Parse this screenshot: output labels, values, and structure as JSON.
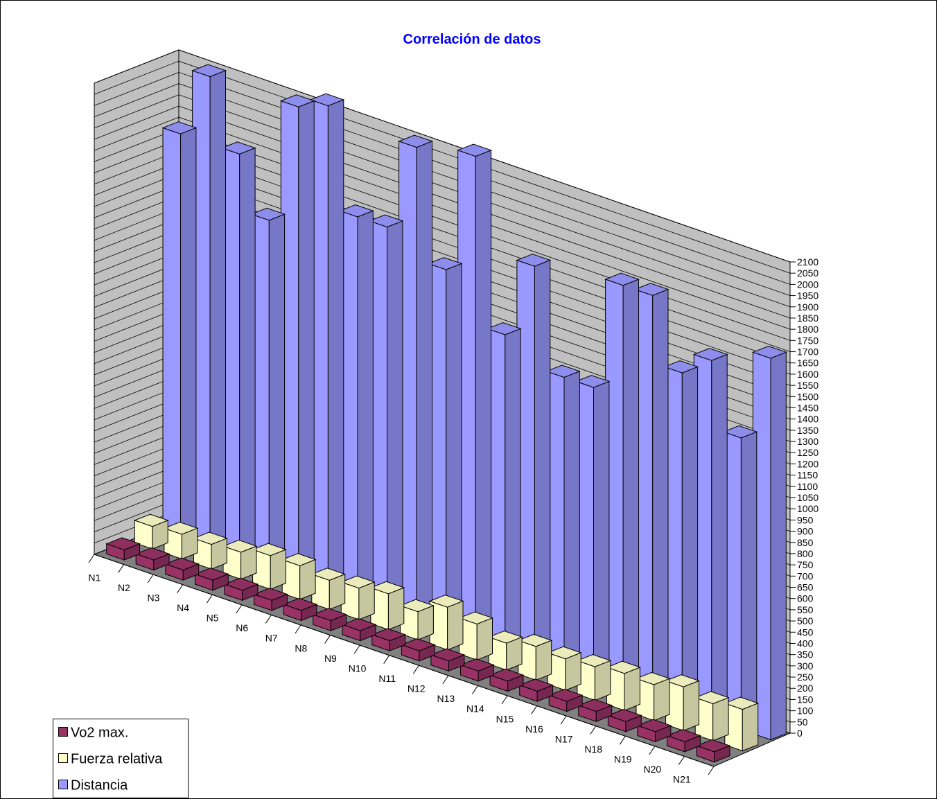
{
  "colors": {
    "title": "#0000ff",
    "wall": "#c0c0c0",
    "floor": "#808080",
    "gridline": "#000000",
    "vo2_front": "#993366",
    "fuerza_front": "#ffffcc",
    "distancia_front": "#9999ff"
  },
  "legend": {
    "placement": "bottom-left",
    "items": [
      {
        "label": "Vo2 max.",
        "color": "#993366"
      },
      {
        "label": "Fuerza relativa",
        "color": "#ffffcc"
      },
      {
        "label": "Distancia",
        "color": "#9999ff"
      }
    ]
  },
  "chart_data": {
    "type": "bar",
    "subtype": "3d-column",
    "title": "Correlación de datos",
    "xlabel": "",
    "ylabel": "",
    "ylim": [
      0,
      2100
    ],
    "ytick_step": 50,
    "yticks": [
      "0",
      "50",
      "100",
      "150",
      "200",
      "250",
      "300",
      "350",
      "400",
      "450",
      "500",
      "550",
      "600",
      "650",
      "700",
      "750",
      "800",
      "850",
      "900",
      "950",
      "1000",
      "1050",
      "1100",
      "1150",
      "1200",
      "1250",
      "1300",
      "1350",
      "1400",
      "1450",
      "1500",
      "1550",
      "1600",
      "1650",
      "1700",
      "1750",
      "1800",
      "1850",
      "1900",
      "1950",
      "2000",
      "2050",
      "2100"
    ],
    "grid": true,
    "categories": [
      "N1",
      "N2",
      "N3",
      "N4",
      "N5",
      "N6",
      "N7",
      "N8",
      "N9",
      "N10",
      "N11",
      "N12",
      "N13",
      "N14",
      "N15",
      "N16",
      "N17",
      "N18",
      "N19",
      "N20",
      "N21"
    ],
    "series": [
      {
        "name": "Vo2 max.",
        "values": [
          45,
          45,
          45,
          45,
          45,
          45,
          45,
          45,
          45,
          45,
          45,
          45,
          45,
          45,
          45,
          45,
          45,
          45,
          45,
          45,
          45
        ]
      },
      {
        "name": "Fuerza relativa",
        "values": [
          100,
          110,
          110,
          120,
          150,
          150,
          130,
          140,
          160,
          125,
          190,
          160,
          120,
          150,
          140,
          150,
          165,
          160,
          195,
          165,
          185
        ]
      },
      {
        "name": "Distancia",
        "values": [
          1800,
          2100,
          1800,
          1550,
          2100,
          2150,
          1700,
          1700,
          2100,
          1600,
          2150,
          1400,
          1750,
          1300,
          1300,
          1800,
          1800,
          1500,
          1600,
          1300,
          1700
        ]
      }
    ]
  }
}
